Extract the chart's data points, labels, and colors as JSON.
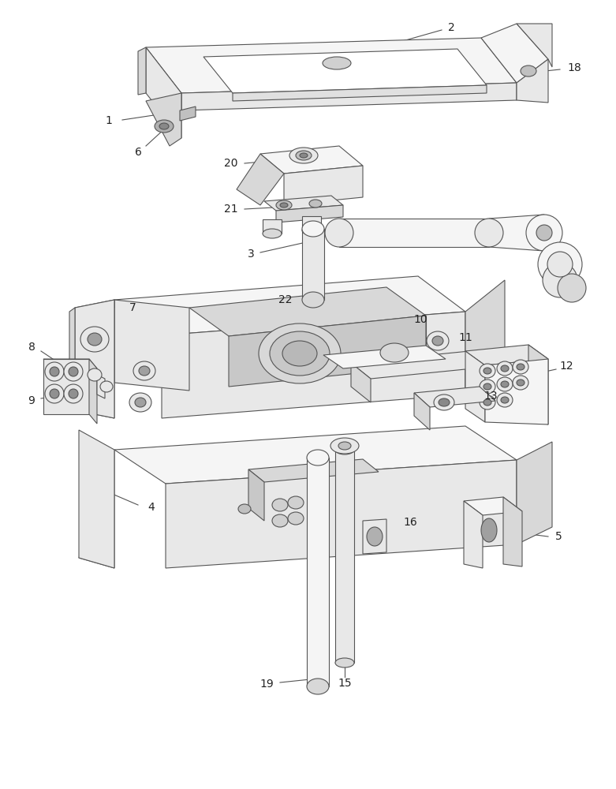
{
  "background_color": "#ffffff",
  "line_color": "#555555",
  "line_width": 0.8,
  "label_fontsize": 10,
  "label_color": "#222222",
  "face_light": "#f5f5f5",
  "face_mid": "#e8e8e8",
  "face_dark": "#d8d8d8",
  "face_darker": "#c8c8c8",
  "figsize": [
    7.81,
    10.0
  ],
  "dpi": 100
}
